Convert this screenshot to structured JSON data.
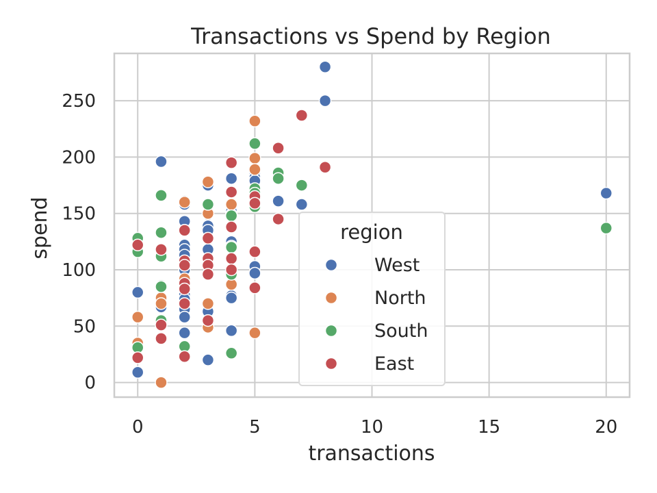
{
  "chart_data": {
    "type": "scatter",
    "title": "Transactions vs Spend by Region",
    "xlabel": "transactions",
    "ylabel": "spend",
    "xlim": [
      -1,
      21
    ],
    "ylim": [
      -13,
      292
    ],
    "xticks": [
      0,
      5,
      10,
      15,
      20
    ],
    "yticks": [
      0,
      50,
      100,
      150,
      200,
      250
    ],
    "grid": true,
    "legend": {
      "title": "region",
      "placement": "center-right"
    },
    "series": [
      {
        "name": "West",
        "color": "#4c72b0",
        "points": [
          [
            0,
            80
          ],
          [
            0,
            9
          ],
          [
            1,
            196
          ],
          [
            1,
            115
          ],
          [
            1,
            113
          ],
          [
            1,
            67
          ],
          [
            2,
            161
          ],
          [
            2,
            158
          ],
          [
            2,
            143
          ],
          [
            2,
            135
          ],
          [
            2,
            122
          ],
          [
            2,
            118
          ],
          [
            2,
            113
          ],
          [
            2,
            107
          ],
          [
            2,
            100
          ],
          [
            2,
            78
          ],
          [
            2,
            74
          ],
          [
            2,
            65
          ],
          [
            2,
            58
          ],
          [
            2,
            44
          ],
          [
            3,
            175
          ],
          [
            3,
            149
          ],
          [
            3,
            139
          ],
          [
            3,
            135
          ],
          [
            3,
            118
          ],
          [
            3,
            63
          ],
          [
            3,
            20
          ],
          [
            4,
            181
          ],
          [
            4,
            152
          ],
          [
            4,
            149
          ],
          [
            4,
            125
          ],
          [
            4,
            121
          ],
          [
            4,
            77
          ],
          [
            4,
            75
          ],
          [
            4,
            46
          ],
          [
            5,
            186
          ],
          [
            5,
            182
          ],
          [
            5,
            179
          ],
          [
            5,
            103
          ],
          [
            5,
            97
          ],
          [
            6,
            161
          ],
          [
            7,
            158
          ],
          [
            8,
            280
          ],
          [
            8,
            250
          ],
          [
            20,
            168
          ]
        ]
      },
      {
        "name": "North",
        "color": "#dd8452",
        "points": [
          [
            0,
            124
          ],
          [
            0,
            58
          ],
          [
            0,
            35
          ],
          [
            1,
            75
          ],
          [
            1,
            70
          ],
          [
            1,
            0
          ],
          [
            2,
            160
          ],
          [
            2,
            92
          ],
          [
            3,
            178
          ],
          [
            3,
            150
          ],
          [
            3,
            70
          ],
          [
            3,
            49
          ],
          [
            4,
            158
          ],
          [
            4,
            87
          ],
          [
            5,
            232
          ],
          [
            5,
            199
          ],
          [
            5,
            189
          ],
          [
            5,
            44
          ]
        ]
      },
      {
        "name": "South",
        "color": "#55a868",
        "points": [
          [
            0,
            128
          ],
          [
            0,
            116
          ],
          [
            0,
            31
          ],
          [
            1,
            166
          ],
          [
            1,
            133
          ],
          [
            1,
            112
          ],
          [
            1,
            86
          ],
          [
            1,
            85
          ],
          [
            1,
            55
          ],
          [
            2,
            32
          ],
          [
            3,
            158
          ],
          [
            4,
            148
          ],
          [
            4,
            120
          ],
          [
            4,
            96
          ],
          [
            4,
            26
          ],
          [
            5,
            212
          ],
          [
            5,
            172
          ],
          [
            5,
            168
          ],
          [
            5,
            156
          ],
          [
            6,
            186
          ],
          [
            6,
            181
          ],
          [
            7,
            175
          ],
          [
            20,
            137
          ]
        ]
      },
      {
        "name": "East",
        "color": "#c44e52",
        "points": [
          [
            0,
            122
          ],
          [
            0,
            22
          ],
          [
            1,
            118
          ],
          [
            1,
            51
          ],
          [
            1,
            39
          ],
          [
            2,
            135
          ],
          [
            2,
            108
          ],
          [
            2,
            104
          ],
          [
            2,
            88
          ],
          [
            2,
            83
          ],
          [
            2,
            70
          ],
          [
            2,
            23
          ],
          [
            3,
            128
          ],
          [
            3,
            110
          ],
          [
            3,
            104
          ],
          [
            3,
            96
          ],
          [
            3,
            55
          ],
          [
            4,
            195
          ],
          [
            4,
            169
          ],
          [
            4,
            138
          ],
          [
            4,
            110
          ],
          [
            4,
            100
          ],
          [
            5,
            165
          ],
          [
            5,
            159
          ],
          [
            5,
            116
          ],
          [
            5,
            84
          ],
          [
            6,
            208
          ],
          [
            6,
            145
          ],
          [
            7,
            237
          ],
          [
            8,
            191
          ]
        ]
      }
    ]
  }
}
